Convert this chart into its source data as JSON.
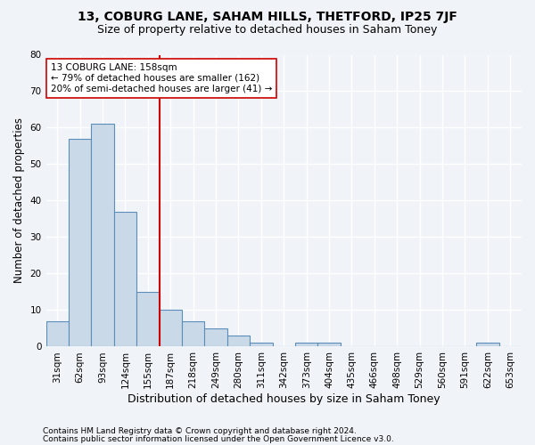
{
  "title1": "13, COBURG LANE, SAHAM HILLS, THETFORD, IP25 7JF",
  "title2": "Size of property relative to detached houses in Saham Toney",
  "xlabel": "Distribution of detached houses by size in Saham Toney",
  "ylabel": "Number of detached properties",
  "categories": [
    "31sqm",
    "62sqm",
    "93sqm",
    "124sqm",
    "155sqm",
    "187sqm",
    "218sqm",
    "249sqm",
    "280sqm",
    "311sqm",
    "342sqm",
    "373sqm",
    "404sqm",
    "435sqm",
    "466sqm",
    "498sqm",
    "529sqm",
    "560sqm",
    "591sqm",
    "622sqm",
    "653sqm"
  ],
  "values": [
    7,
    57,
    61,
    37,
    15,
    10,
    7,
    5,
    3,
    1,
    0,
    1,
    1,
    0,
    0,
    0,
    0,
    0,
    0,
    1,
    0
  ],
  "bar_color": "#c9d9e8",
  "bar_edge_color": "#5b8db8",
  "vline_x": 4.5,
  "vline_color": "#cc0000",
  "annotation_text": "13 COBURG LANE: 158sqm\n← 79% of detached houses are smaller (162)\n20% of semi-detached houses are larger (41) →",
  "annotation_box_color": "#ffffff",
  "annotation_box_edge": "#cc0000",
  "ylim": [
    0,
    80
  ],
  "yticks": [
    0,
    10,
    20,
    30,
    40,
    50,
    60,
    70,
    80
  ],
  "footnote1": "Contains HM Land Registry data © Crown copyright and database right 2024.",
  "footnote2": "Contains public sector information licensed under the Open Government Licence v3.0.",
  "bg_color": "#f0f4f8",
  "grid_color": "#ffffff",
  "title1_fontsize": 10,
  "title2_fontsize": 9,
  "xlabel_fontsize": 9,
  "ylabel_fontsize": 8.5,
  "tick_fontsize": 7.5,
  "annot_fontsize": 7.5,
  "footnote_fontsize": 6.5
}
